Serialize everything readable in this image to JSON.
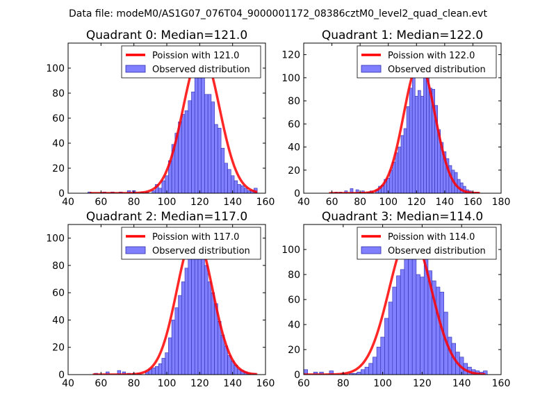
{
  "figure": {
    "suptitle": "Data file: modeM0/AS1G07_076T04_9000001172_08386cztM0_level2_quad_clean.evt"
  },
  "colors": {
    "curve": "#ff0000",
    "bar_fill": "#8080ff",
    "bar_edge": "#2b2bb0",
    "legend_patch": "#8080ff"
  },
  "chart_data": [
    {
      "type": "bar",
      "title": "Quadrant 0: Median=121.0",
      "xlim": [
        40,
        160
      ],
      "ylim": [
        0,
        120
      ],
      "xticks": [
        40,
        60,
        80,
        100,
        120,
        140,
        160
      ],
      "yticks": [
        0,
        20,
        40,
        60,
        80,
        100
      ],
      "bin_width": 2,
      "bars": [
        [
          53,
          1
        ],
        [
          62,
          1
        ],
        [
          67,
          1
        ],
        [
          72,
          1
        ],
        [
          77,
          2
        ],
        [
          80,
          2
        ],
        [
          85,
          1
        ],
        [
          88,
          1
        ],
        [
          92,
          2
        ],
        [
          94,
          7
        ],
        [
          96,
          4
        ],
        [
          98,
          10
        ],
        [
          100,
          14
        ],
        [
          102,
          26
        ],
        [
          104,
          39
        ],
        [
          106,
          48
        ],
        [
          108,
          57
        ],
        [
          110,
          63
        ],
        [
          112,
          66
        ],
        [
          114,
          74
        ],
        [
          116,
          81
        ],
        [
          118,
          97
        ],
        [
          120,
          98
        ],
        [
          122,
          111
        ],
        [
          124,
          79
        ],
        [
          126,
          79
        ],
        [
          128,
          73
        ],
        [
          130,
          55
        ],
        [
          132,
          52
        ],
        [
          134,
          36
        ],
        [
          136,
          24
        ],
        [
          138,
          19
        ],
        [
          140,
          14
        ],
        [
          142,
          10
        ],
        [
          144,
          7
        ],
        [
          146,
          6
        ],
        [
          148,
          4
        ],
        [
          150,
          2
        ],
        [
          152,
          2
        ],
        [
          154,
          4
        ]
      ],
      "curve": {
        "label": "Poission with 121.0",
        "mean": 121.0,
        "peak": 113,
        "x_range": [
          53,
          155
        ]
      },
      "legend": {
        "curve": "Poission with 121.0",
        "bars": "Observed distribution"
      }
    },
    {
      "type": "bar",
      "title": "Quadrant 1: Median=122.0",
      "xlim": [
        40,
        180
      ],
      "ylim": [
        0,
        130
      ],
      "xticks": [
        40,
        60,
        80,
        100,
        120,
        140,
        160,
        180
      ],
      "yticks": [
        0,
        20,
        40,
        60,
        80,
        100,
        120
      ],
      "bin_width": 2,
      "bars": [
        [
          63,
          1
        ],
        [
          66,
          1
        ],
        [
          70,
          2
        ],
        [
          74,
          4
        ],
        [
          78,
          3
        ],
        [
          82,
          2
        ],
        [
          86,
          1
        ],
        [
          88,
          2
        ],
        [
          92,
          3
        ],
        [
          94,
          6
        ],
        [
          96,
          7
        ],
        [
          98,
          12
        ],
        [
          100,
          13
        ],
        [
          102,
          20
        ],
        [
          104,
          27
        ],
        [
          106,
          35
        ],
        [
          108,
          40
        ],
        [
          110,
          50
        ],
        [
          112,
          56
        ],
        [
          114,
          75
        ],
        [
          116,
          91
        ],
        [
          118,
          106
        ],
        [
          120,
          84
        ],
        [
          122,
          89
        ],
        [
          124,
          84
        ],
        [
          126,
          103
        ],
        [
          128,
          112
        ],
        [
          130,
          91
        ],
        [
          132,
          90
        ],
        [
          134,
          76
        ],
        [
          136,
          55
        ],
        [
          138,
          44
        ],
        [
          140,
          36
        ],
        [
          142,
          30
        ],
        [
          144,
          24
        ],
        [
          146,
          20
        ],
        [
          148,
          18
        ],
        [
          150,
          12
        ],
        [
          152,
          9
        ],
        [
          154,
          6
        ],
        [
          156,
          3
        ],
        [
          158,
          2
        ],
        [
          160,
          1
        ],
        [
          163,
          1
        ]
      ],
      "curve": {
        "label": "Poission with 122.0",
        "mean": 122.0,
        "peak": 113,
        "x_range": [
          58,
          165
        ]
      },
      "legend": {
        "curve": "Poission with 122.0",
        "bars": "Observed distribution"
      }
    },
    {
      "type": "bar",
      "title": "Quadrant 2: Median=117.0",
      "xlim": [
        40,
        160
      ],
      "ylim": [
        0,
        110
      ],
      "xticks": [
        40,
        60,
        80,
        100,
        120,
        140,
        160
      ],
      "yticks": [
        0,
        20,
        40,
        60,
        80,
        100
      ],
      "bin_width": 2,
      "bars": [
        [
          57,
          1
        ],
        [
          64,
          2
        ],
        [
          71,
          3
        ],
        [
          74,
          2
        ],
        [
          77,
          1
        ],
        [
          80,
          1
        ],
        [
          83,
          1
        ],
        [
          88,
          2
        ],
        [
          90,
          4
        ],
        [
          92,
          5
        ],
        [
          94,
          6
        ],
        [
          96,
          8
        ],
        [
          98,
          12
        ],
        [
          100,
          16
        ],
        [
          102,
          27
        ],
        [
          104,
          40
        ],
        [
          106,
          49
        ],
        [
          108,
          58
        ],
        [
          110,
          68
        ],
        [
          112,
          78
        ],
        [
          114,
          87
        ],
        [
          116,
          91
        ],
        [
          118,
          90
        ],
        [
          120,
          95
        ],
        [
          122,
          86
        ],
        [
          124,
          80
        ],
        [
          126,
          68
        ],
        [
          128,
          60
        ],
        [
          130,
          52
        ],
        [
          132,
          39
        ],
        [
          134,
          29
        ],
        [
          136,
          21
        ],
        [
          138,
          14
        ],
        [
          140,
          10
        ],
        [
          142,
          7
        ],
        [
          144,
          4
        ],
        [
          146,
          3
        ],
        [
          148,
          2
        ],
        [
          150,
          1
        ],
        [
          153,
          1
        ]
      ],
      "curve": {
        "label": "Poission with 117.0",
        "mean": 117.0,
        "peak": 103,
        "x_range": [
          55,
          155
        ]
      },
      "legend": {
        "curve": "Poission with 117.0",
        "bars": "Observed distribution"
      }
    },
    {
      "type": "bar",
      "title": "Quadrant 3: Median=114.0",
      "xlim": [
        60,
        160
      ],
      "ylim": [
        0,
        120
      ],
      "xticks": [
        60,
        80,
        100,
        120,
        140,
        160
      ],
      "yticks": [
        0,
        20,
        40,
        60,
        80,
        100
      ],
      "bin_width": 2,
      "bars": [
        [
          61,
          4
        ],
        [
          66,
          2
        ],
        [
          69,
          2
        ],
        [
          74,
          3
        ],
        [
          80,
          1
        ],
        [
          84,
          1
        ],
        [
          86,
          1
        ],
        [
          88,
          2
        ],
        [
          90,
          4
        ],
        [
          92,
          6
        ],
        [
          94,
          9
        ],
        [
          96,
          14
        ],
        [
          98,
          22
        ],
        [
          100,
          30
        ],
        [
          102,
          45
        ],
        [
          104,
          58
        ],
        [
          106,
          70
        ],
        [
          108,
          79
        ],
        [
          110,
          84
        ],
        [
          112,
          99
        ],
        [
          114,
          103
        ],
        [
          116,
          109
        ],
        [
          118,
          80
        ],
        [
          120,
          78
        ],
        [
          122,
          94
        ],
        [
          124,
          83
        ],
        [
          126,
          75
        ],
        [
          128,
          70
        ],
        [
          130,
          66
        ],
        [
          132,
          50
        ],
        [
          134,
          30
        ],
        [
          136,
          25
        ],
        [
          138,
          18
        ],
        [
          140,
          14
        ],
        [
          142,
          9
        ],
        [
          144,
          6
        ],
        [
          146,
          4
        ],
        [
          148,
          3
        ],
        [
          150,
          2
        ],
        [
          152,
          3
        ]
      ],
      "curve": {
        "label": "Poission with 114.0",
        "mean": 114.0,
        "peak": 113,
        "x_range": [
          60,
          152
        ]
      },
      "legend": {
        "curve": "Poission with 114.0",
        "bars": "Observed distribution"
      }
    }
  ]
}
